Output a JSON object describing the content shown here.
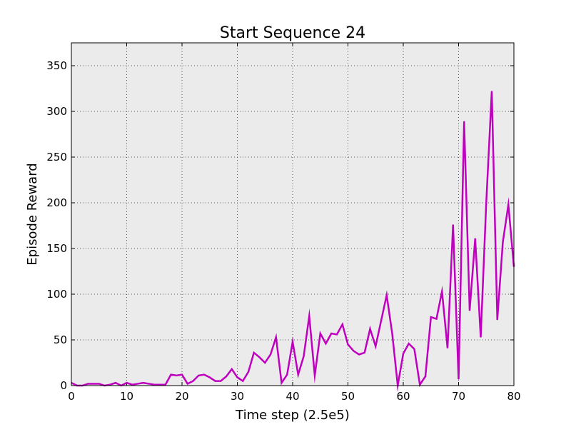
{
  "chart_data": {
    "type": "line",
    "title": "Start Sequence 24",
    "xlabel": "Time step (2.5e5)",
    "ylabel": "Episode Reward",
    "xlim": [
      0,
      80
    ],
    "ylim": [
      0,
      375
    ],
    "grid": true,
    "xticks": [
      0,
      10,
      20,
      30,
      40,
      50,
      60,
      70,
      80
    ],
    "yticks": [
      0,
      50,
      100,
      150,
      200,
      250,
      300,
      350
    ],
    "colors": {
      "line": "#bf00bf",
      "plot_background": "#ebebeb",
      "grid": "#555555"
    },
    "series": [
      {
        "x": [
          0,
          1,
          2,
          3,
          4,
          5,
          6,
          7,
          8,
          9,
          10,
          11,
          12,
          13,
          14,
          15,
          16,
          17,
          18,
          19,
          20,
          21,
          22,
          23,
          24,
          25,
          26,
          27,
          28,
          29,
          30,
          31,
          32,
          33,
          34,
          35,
          36,
          37,
          38,
          39,
          40,
          41,
          42,
          43,
          44,
          45,
          46,
          47,
          48,
          49,
          50,
          51,
          52,
          53,
          54,
          55,
          56,
          57,
          58,
          59,
          60,
          61,
          62,
          63,
          64,
          65,
          66,
          67,
          68,
          69,
          70,
          71,
          72,
          73,
          74,
          75,
          76,
          77,
          78,
          79,
          80
        ],
        "values": [
          3,
          0,
          0,
          2,
          2,
          2,
          0,
          1,
          3,
          0,
          3,
          1,
          2,
          3,
          2,
          1,
          1,
          1,
          12,
          11,
          12,
          2,
          5,
          11,
          12,
          9,
          5,
          5,
          10,
          18,
          9,
          5,
          15,
          36,
          31,
          25,
          34,
          53,
          3,
          12,
          48,
          12,
          32,
          76,
          11,
          57,
          46,
          57,
          56,
          67,
          45,
          38,
          34,
          36,
          62,
          43,
          71,
          99,
          57,
          0,
          35,
          46,
          40,
          1,
          10,
          75,
          73,
          103,
          41,
          176,
          7,
          289,
          82,
          161,
          53,
          200,
          322,
          72,
          157,
          198,
          130
        ]
      }
    ]
  }
}
